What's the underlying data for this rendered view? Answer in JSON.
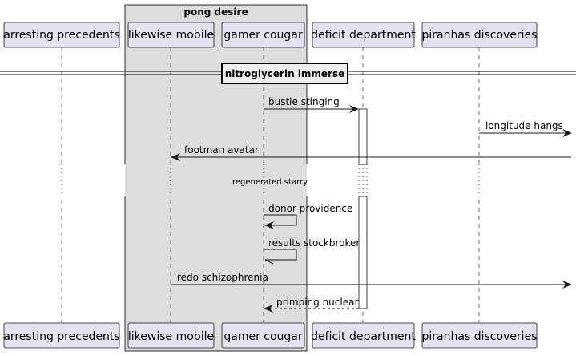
{
  "group": {
    "title": "pong desire"
  },
  "participants": [
    {
      "id": "arresting",
      "label": "arresting precedents"
    },
    {
      "id": "likewise",
      "label": "likewise mobile"
    },
    {
      "id": "gamer",
      "label": "gamer cougar"
    },
    {
      "id": "deficit",
      "label": "deficit department"
    },
    {
      "id": "piranhas",
      "label": "piranhas discoveries"
    }
  ],
  "divider": {
    "label": "nitroglycerin immerse"
  },
  "delay": {
    "label": "regenerated starry"
  },
  "messages": [
    {
      "label": "bustle stinging",
      "from": "gamer",
      "to": "deficit",
      "style": "solid"
    },
    {
      "label": "longitude hangs",
      "from": "piranhas",
      "to": "right-edge",
      "style": "solid"
    },
    {
      "label": "footman avatar",
      "from": "right-edge",
      "to": "likewise",
      "style": "solid"
    },
    {
      "label": "donor providence",
      "from": "gamer",
      "to": "gamer",
      "style": "self"
    },
    {
      "label": "results stockbroker",
      "from": "gamer",
      "to": "gamer",
      "style": "self-open"
    },
    {
      "label": "redo schizophrenia",
      "from": "likewise",
      "to": "right-edge",
      "style": "solid"
    },
    {
      "label": "primping nuclear",
      "from": "deficit",
      "to": "gamer",
      "style": "dashed"
    }
  ]
}
